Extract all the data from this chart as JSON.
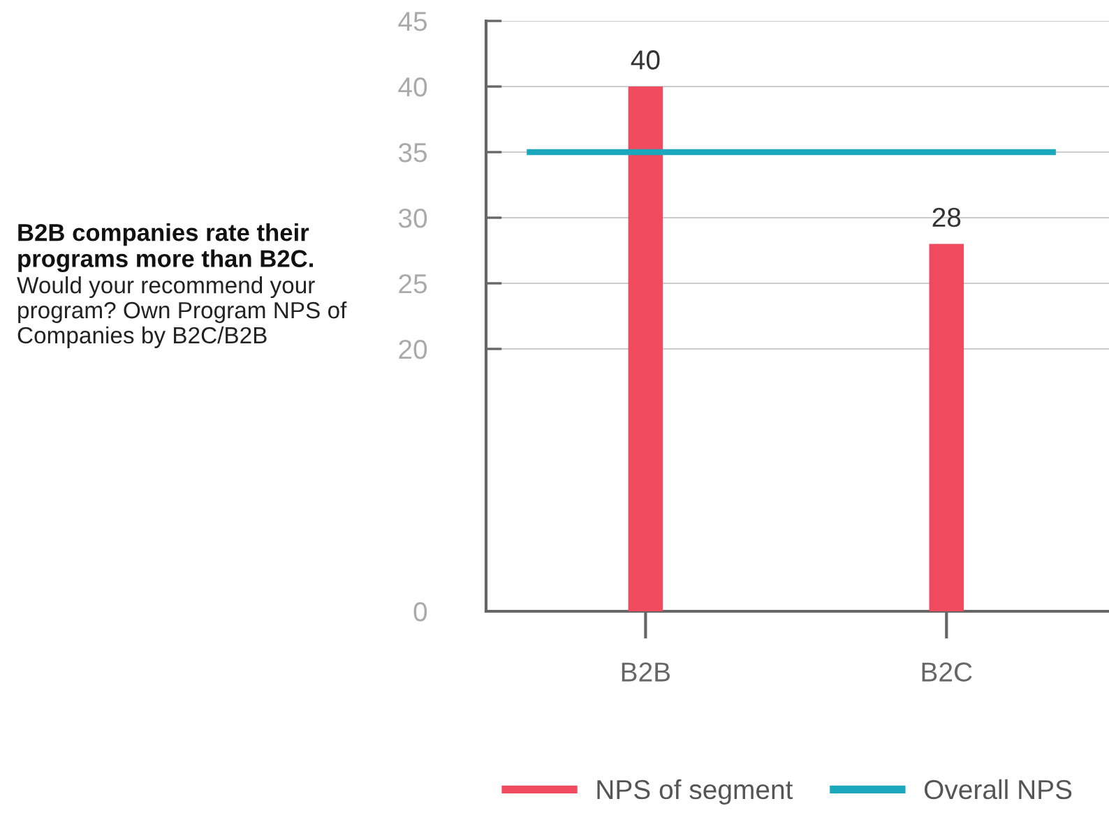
{
  "chart_data": {
    "type": "bar",
    "title": "B2B companies rate their programs more than B2C.",
    "subtitle": "Would your recommend your program? Own Program NPS of Companies by B2C/B2B",
    "categories": [
      "B2B",
      "B2C"
    ],
    "series": [
      {
        "name": "NPS of segment",
        "color": "#ef4a5d",
        "values": [
          40,
          28
        ]
      }
    ],
    "ref_lines": [
      {
        "axis": "y",
        "value": 35,
        "label": "Overall NPS",
        "color": "#1ba8bd"
      }
    ],
    "ylim": [
      0,
      45
    ],
    "yticks": [
      0,
      20,
      25,
      30,
      35,
      40,
      45
    ],
    "grid": "y",
    "data_labels": true,
    "legend": "bottom"
  }
}
